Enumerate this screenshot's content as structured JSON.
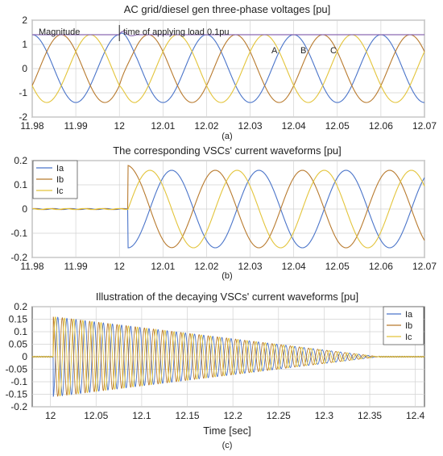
{
  "colors": {
    "a": "#4a74c9",
    "b": "#b87a2e",
    "c": "#e3c43a",
    "magnitude": "#8c6bb2"
  },
  "chart_data": [
    {
      "type": "line",
      "title": "AC grid/diesel gen three-phase voltages [pu]",
      "panel_label": "(a)",
      "xlim": [
        11.98,
        12.07
      ],
      "ylim": [
        -2,
        2
      ],
      "xticks": [
        "11.98",
        "11.99",
        "12",
        "12.01",
        "12.02",
        "12.03",
        "12.04",
        "12.05",
        "12.06",
        "12.07"
      ],
      "yticks": [
        "-2",
        "-1",
        "0",
        "1",
        "2"
      ],
      "grid": true,
      "annotations": {
        "magnitude": "Magnitude",
        "load": "time of applying load 0.1pu",
        "phase_a": "A",
        "phase_b": "B",
        "phase_c": "C"
      },
      "load_time": 12.0,
      "frequency_hz": 50,
      "amplitude": 1.4,
      "series": [
        {
          "name": "A",
          "phase_deg": 90
        },
        {
          "name": "B",
          "phase_deg": -30
        },
        {
          "name": "C",
          "phase_deg": 210
        },
        {
          "name": "Magnitude",
          "value": 1.4
        }
      ]
    },
    {
      "type": "line",
      "title": "The corresponding VSCs' current waveforms [pu]",
      "panel_label": "(b)",
      "xlim": [
        11.98,
        12.07
      ],
      "ylim": [
        -0.2,
        0.2
      ],
      "xticks": [
        "11.98",
        "11.99",
        "12",
        "12.01",
        "12.02",
        "12.03",
        "12.04",
        "12.05",
        "12.06",
        "12.07"
      ],
      "yticks": [
        "-0.2",
        "-0.1",
        "0",
        "0.1",
        "0.2"
      ],
      "grid": true,
      "legend": {
        "position": "top-left",
        "entries": [
          "Ia",
          "Ib",
          "Ic"
        ]
      },
      "step_time": 12.002,
      "frequency_hz": 50,
      "amplitude": 0.16,
      "peak_overshoot": 0.18,
      "series": [
        {
          "name": "Ia",
          "phase_deg": -90
        },
        {
          "name": "Ib",
          "phase_deg": 90
        },
        {
          "name": "Ic",
          "phase_deg": 0
        }
      ]
    },
    {
      "type": "line",
      "title": "Illustration of the decaying VSCs' current waveforms [pu]",
      "panel_label": "(c)",
      "xlabel": "Time [sec]",
      "xlim": [
        11.98,
        12.41
      ],
      "ylim": [
        -0.2,
        0.2
      ],
      "xticks": [
        "12",
        "12.05",
        "12.1",
        "12.15",
        "12.2",
        "12.25",
        "12.3",
        "12.35",
        "12.4"
      ],
      "yticks": [
        "-0.2",
        "-0.15",
        "-0.1",
        "-0.05",
        "0",
        "0.05",
        "0.1",
        "0.15",
        "0.2"
      ],
      "grid": true,
      "legend": {
        "position": "top-right",
        "entries": [
          "Ia",
          "Ib",
          "Ic"
        ]
      },
      "step_time": 12.003,
      "end_time": 12.36,
      "frequency_hz": 100,
      "amplitude": 0.16,
      "series": [
        {
          "name": "Ia",
          "phase_deg": -90
        },
        {
          "name": "Ib",
          "phase_deg": 90
        },
        {
          "name": "Ic",
          "phase_deg": 0
        }
      ]
    }
  ]
}
